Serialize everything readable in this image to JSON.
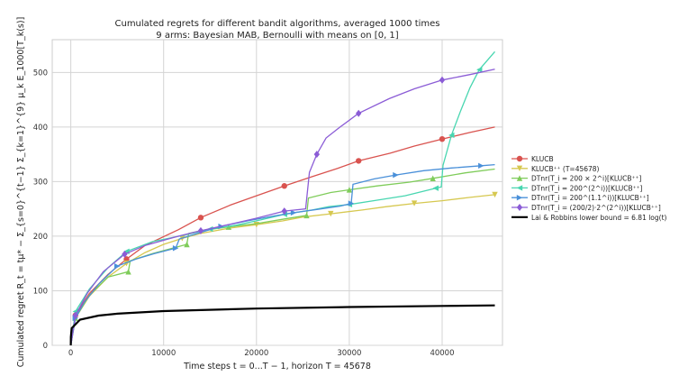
{
  "chart_data": {
    "type": "line",
    "title": "Cumulated regrets for different bandit algorithms, averaged 1000 times",
    "subtitle": "9 arms: Bayesian MAB, Bernoulli with means on [0, 1]",
    "xlabel": "Time steps t = 0...T − 1, horizon T = 45678",
    "ylabel": "Cumulated regret R_t = tμ* − Σ_{s=0}^{t−1} Σ_{k=1}^{9} μ_k E_1000[T_k(s)]",
    "xlim": [
      -2000,
      46500
    ],
    "ylim": [
      0,
      560
    ],
    "xticks": [
      0,
      10000,
      20000,
      30000,
      40000
    ],
    "yticks": [
      0,
      100,
      200,
      300,
      400,
      500
    ],
    "xtick_labels": [
      "0",
      "10000",
      "20000",
      "30000",
      "40000"
    ],
    "ytick_labels": [
      "0",
      "100",
      "200",
      "300",
      "400",
      "500"
    ],
    "grid": true,
    "legend_position": "right",
    "series": [
      {
        "name": "KLUCB",
        "color": "#d9534f",
        "marker": "circle",
        "x": [
          0,
          500,
          2000,
          4000,
          6000,
          8000,
          11600,
          14000,
          17200,
          20000,
          23000,
          26000,
          28700,
          31000,
          34400,
          37000,
          40000,
          43000,
          45678
        ],
        "y": [
          0,
          55,
          95,
          130,
          158,
          183,
          212,
          234,
          257,
          274,
          292,
          309,
          324,
          338,
          352,
          365,
          378,
          390,
          400
        ]
      },
      {
        "name": "KLUCB⁺⁺ (T=45678)",
        "color": "#d6c850",
        "marker": "triangle-down",
        "x": [
          0,
          500,
          2000,
          4000,
          6000,
          8000,
          10000,
          12000,
          14000,
          17200,
          20000,
          22800,
          25000,
          28000,
          31400,
          34000,
          37000,
          40000,
          43000,
          45678
        ],
        "y": [
          0,
          50,
          90,
          125,
          150,
          170,
          185,
          196,
          205,
          215,
          221,
          228,
          235,
          241,
          248,
          254,
          260,
          265,
          271,
          276
        ]
      },
      {
        "name": "DTnr(T_i = 200 × 2^i)[KLUCB⁺⁺]",
        "color": "#7fcc5a",
        "marker": "triangle-up",
        "x": [
          0,
          500,
          2000,
          4000,
          6200,
          6400,
          8800,
          12500,
          12700,
          14000,
          17000,
          20000,
          22800,
          25400,
          25600,
          28000,
          30000,
          33000,
          36500,
          39000,
          42500,
          45678
        ],
        "y": [
          0,
          50,
          92,
          125,
          135,
          155,
          168,
          185,
          205,
          210,
          217,
          223,
          231,
          238,
          270,
          280,
          285,
          292,
          299,
          306,
          316,
          323
        ]
      },
      {
        "name": "DTnr(T_i = 200^(2^i))[KLUCB⁺⁺]",
        "color": "#48d6b0",
        "marker": "triangle-left",
        "x": [
          0,
          500,
          2000,
          4000,
          6000,
          8800,
          12000,
          15000,
          17800,
          20500,
          23000,
          26000,
          27800,
          30000,
          33000,
          36000,
          39300,
          39900,
          40100,
          41000,
          42000,
          43000,
          44000,
          45678
        ],
        "y": [
          0,
          62,
          103,
          142,
          172,
          190,
          201,
          213,
          220,
          230,
          240,
          248,
          254,
          258,
          266,
          274,
          288,
          290,
          330,
          385,
          430,
          472,
          505,
          538
        ]
      },
      {
        "name": "DTnr(T_i = 200^(1.1^i))[KLUCB⁺⁺]",
        "color": "#4a90d9",
        "marker": "triangle-right",
        "x": [
          0,
          500,
          1500,
          3000,
          5000,
          7000,
          9000,
          11300,
          11700,
          14000,
          16200,
          19000,
          21900,
          24000,
          26500,
          29000,
          30200,
          30400,
          32700,
          35000,
          38000,
          41000,
          44200,
          45678
        ],
        "y": [
          0,
          50,
          80,
          112,
          145,
          158,
          168,
          178,
          195,
          207,
          218,
          228,
          237,
          243,
          249,
          255,
          260,
          295,
          305,
          312,
          320,
          325,
          329,
          331
        ]
      },
      {
        "name": "DTnr(T_i = (200/2)·2^(2^i))[KLUCB⁺⁺]",
        "color": "#8b5cd6",
        "marker": "diamond",
        "x": [
          0,
          500,
          1800,
          3500,
          5800,
          8000,
          11600,
          14000,
          17200,
          20000,
          23000,
          25300,
          25700,
          26500,
          27500,
          29000,
          31000,
          34300,
          37000,
          40000,
          43000,
          45678
        ],
        "y": [
          0,
          55,
          96,
          135,
          167,
          183,
          200,
          210,
          222,
          233,
          246,
          250,
          317,
          350,
          380,
          400,
          425,
          452,
          470,
          486,
          496,
          506
        ]
      },
      {
        "name": "Lai & Robbins lower bound = 6.81 log(t)",
        "color": "#000000",
        "marker": "none",
        "x": [
          1,
          10,
          100,
          1000,
          3000,
          5000,
          10000,
          20000,
          30000,
          40000,
          45678
        ],
        "y": [
          0,
          15.7,
          31.4,
          47.0,
          54.5,
          58.0,
          62.7,
          67.4,
          70.2,
          72.2,
          73.1
        ]
      }
    ]
  }
}
